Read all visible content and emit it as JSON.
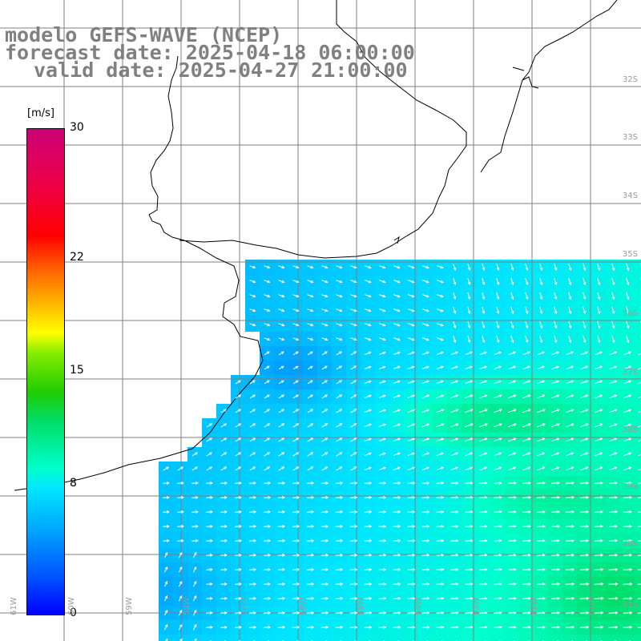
{
  "title": {
    "line1": "modelo GEFS-WAVE (NCEP)",
    "line2": "forecast date: 2025-04-18 06:00:00",
    "line3": "valid date: 2025-04-27 21:00:00"
  },
  "legend": {
    "unit": "[m/s]",
    "ticks": [
      "30",
      "22",
      "15",
      "8",
      "0"
    ],
    "tick_values": [
      30,
      22,
      15,
      8,
      0
    ],
    "min": 0,
    "max": 30
  },
  "grid": {
    "lat_labels": [
      "32S",
      "33S",
      "34S",
      "35S",
      "36S",
      "37S",
      "38S",
      "39S",
      "40S",
      "41S"
    ],
    "lat_values": [
      -32,
      -33,
      -34,
      -35,
      -36,
      -37,
      -38,
      -39,
      -40,
      -41
    ],
    "lon_labels": [
      "61W",
      "60W",
      "59W",
      "58W",
      "57W",
      "56W",
      "55W",
      "54W",
      "53W",
      "52W",
      "51W"
    ]
  },
  "colors": {
    "land": "#ffffff",
    "coast": "#000000",
    "gridline": "#7f7f7f",
    "arrow": "#ffffff",
    "title": "#808080"
  }
}
